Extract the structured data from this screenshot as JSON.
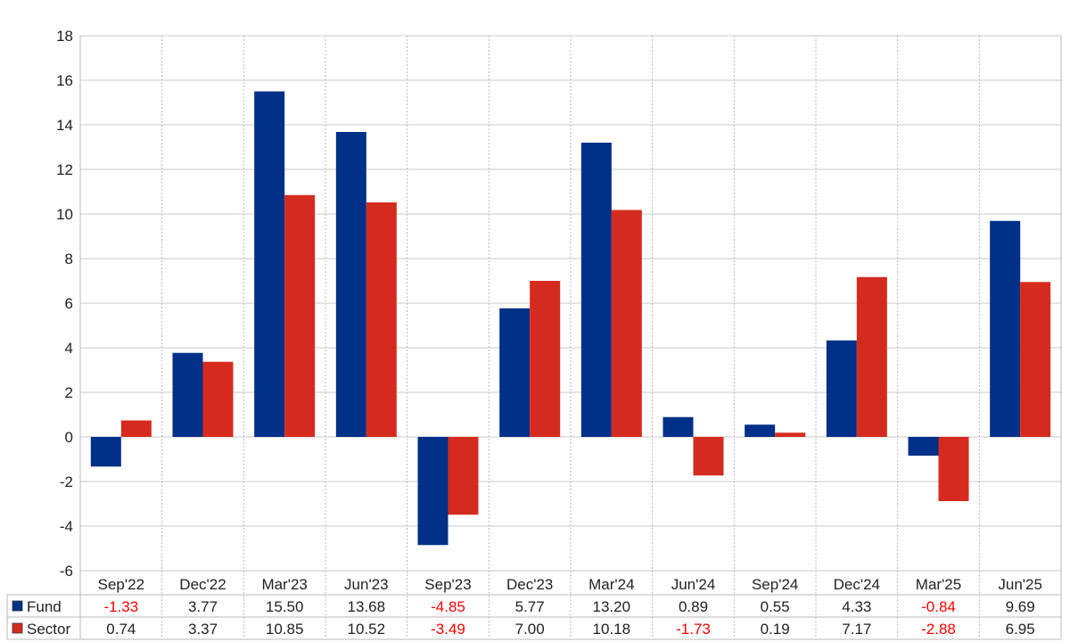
{
  "chart_data": {
    "type": "bar",
    "categories": [
      "Sep'22",
      "Dec'22",
      "Mar'23",
      "Jun'23",
      "Sep'23",
      "Dec'23",
      "Mar'24",
      "Jun'24",
      "Sep'24",
      "Dec'24",
      "Mar'25",
      "Jun'25"
    ],
    "series": [
      {
        "name": "Fund",
        "color": "#003087",
        "values": [
          -1.33,
          3.77,
          15.5,
          13.68,
          -4.85,
          5.77,
          13.2,
          0.89,
          0.55,
          4.33,
          -0.84,
          9.69
        ]
      },
      {
        "name": "Sector",
        "color": "#d52b1e",
        "values": [
          0.74,
          3.37,
          10.85,
          10.52,
          -3.49,
          7.0,
          10.18,
          -1.73,
          0.19,
          7.17,
          -2.88,
          6.95
        ]
      }
    ],
    "ylim": [
      -6,
      18
    ],
    "yticks": [
      -6,
      -4,
      -2,
      0,
      2,
      4,
      6,
      8,
      10,
      12,
      14,
      16,
      18
    ],
    "grid": true,
    "legend": "data-table-rows",
    "table": {
      "rows": [
        {
          "label": "Fund",
          "cells": [
            "-1.33",
            "3.77",
            "15.50",
            "13.68",
            "-4.85",
            "5.77",
            "13.20",
            "0.89",
            "0.55",
            "4.33",
            "-0.84",
            "9.69"
          ]
        },
        {
          "label": "Sector",
          "cells": [
            "0.74",
            "3.37",
            "10.85",
            "10.52",
            "-3.49",
            "7.00",
            "10.18",
            "-1.73",
            "0.19",
            "7.17",
            "-2.88",
            "6.95"
          ]
        }
      ],
      "negative_color": "#ff0000"
    }
  }
}
